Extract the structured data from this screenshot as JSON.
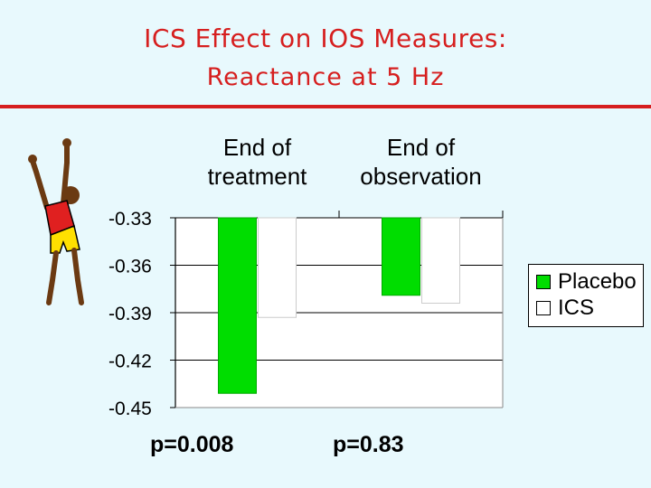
{
  "slide": {
    "title_line1": "ICS Effect on IOS Measures:",
    "title_line2": "Reactance at 5 Hz"
  },
  "colors": {
    "title": "#d61f1f",
    "placebo": "#00dd00",
    "ics": "#ffffff",
    "background": "#e8f9fd"
  },
  "chart_data": {
    "type": "bar",
    "title": "",
    "categories": [
      "End of treatment",
      "End of observation"
    ],
    "category_lines": [
      [
        "End of",
        "treatment"
      ],
      [
        "End of",
        "observation"
      ]
    ],
    "series": [
      {
        "name": "Placebo",
        "values": [
          -0.441,
          -0.379
        ]
      },
      {
        "name": "ICS",
        "values": [
          -0.393,
          -0.384
        ]
      }
    ],
    "ylim": [
      -0.45,
      -0.33
    ],
    "yticks": [
      "-0.33",
      "-0.36",
      "-0.39",
      "-0.42",
      "-0.45"
    ],
    "grid": true,
    "legend": "right",
    "annotations": [
      "p=0.008",
      "p=0.83"
    ],
    "xlabel": "",
    "ylabel": ""
  }
}
